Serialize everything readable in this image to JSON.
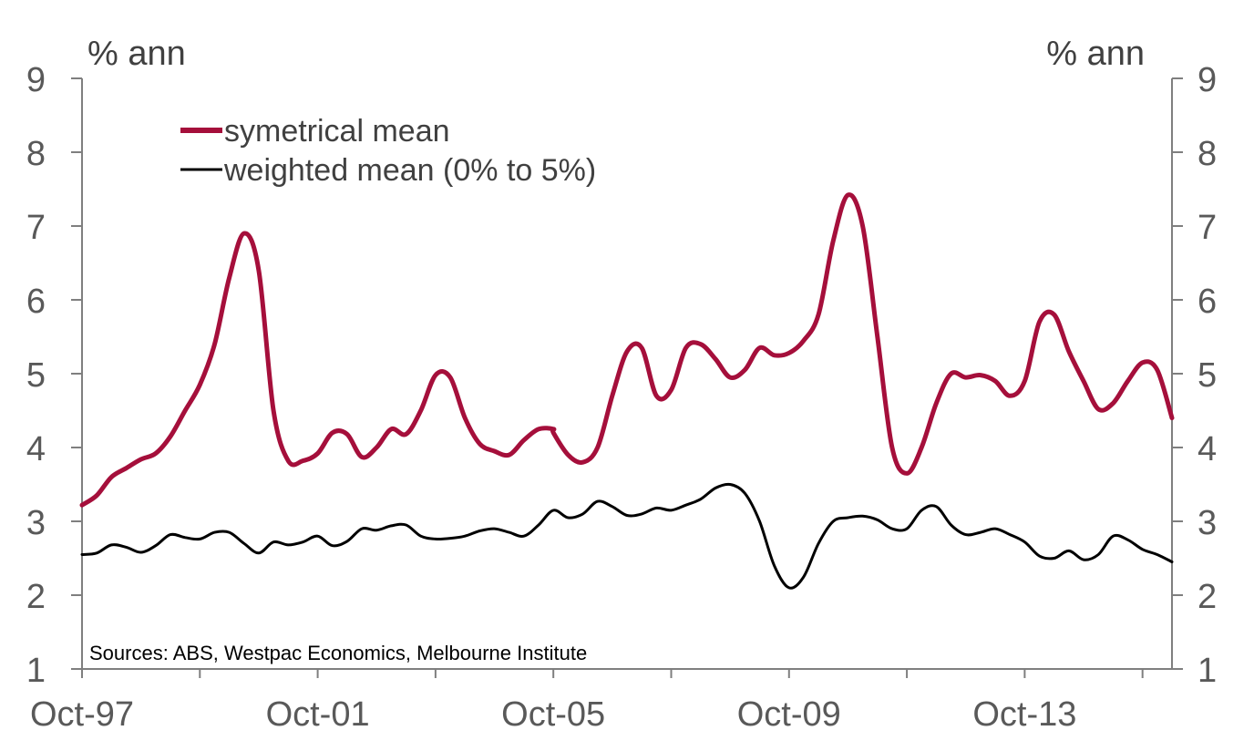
{
  "chart_data": {
    "type": "line",
    "y_unit_left": "% ann",
    "y_unit_right": "% ann",
    "source": "Sources: ABS, Westpac Economics, Melbourne Institute",
    "ylim": [
      1,
      9
    ],
    "y_ticks": [
      1,
      2,
      3,
      4,
      5,
      6,
      7,
      8,
      9
    ],
    "x_tick_labels": [
      "Oct-97",
      "Oct-01",
      "Oct-05",
      "Oct-09",
      "Oct-13"
    ],
    "x_label_years": [
      1997.75,
      2001.75,
      2005.75,
      2009.75,
      2013.75
    ],
    "x_minor_tick_years": [
      1997.75,
      1999.75,
      2001.75,
      2003.75,
      2005.75,
      2007.75,
      2009.75,
      2011.75,
      2013.75,
      2015.75
    ],
    "xlim": [
      1997.75,
      2016.25
    ],
    "grid": false,
    "legend_position": "top-left",
    "series": [
      {
        "name": "symetrical mean",
        "color": "#a50f3b",
        "points": [
          [
            1997.75,
            3.22
          ],
          [
            1998.0,
            3.35
          ],
          [
            1998.25,
            3.6
          ],
          [
            1998.5,
            3.72
          ],
          [
            1998.75,
            3.84
          ],
          [
            1999.0,
            3.92
          ],
          [
            1999.25,
            4.15
          ],
          [
            1999.5,
            4.5
          ],
          [
            1999.75,
            4.85
          ],
          [
            2000.0,
            5.4
          ],
          [
            2000.25,
            6.3
          ],
          [
            2000.5,
            6.9
          ],
          [
            2000.75,
            6.4
          ],
          [
            2001.0,
            4.5
          ],
          [
            2001.25,
            3.82
          ],
          [
            2001.5,
            3.82
          ],
          [
            2001.75,
            3.92
          ],
          [
            2002.0,
            4.2
          ],
          [
            2002.25,
            4.18
          ],
          [
            2002.5,
            3.87
          ],
          [
            2002.75,
            4.0
          ],
          [
            2003.0,
            4.25
          ],
          [
            2003.25,
            4.18
          ],
          [
            2003.5,
            4.5
          ],
          [
            2003.75,
            4.98
          ],
          [
            2004.0,
            4.95
          ],
          [
            2004.25,
            4.4
          ],
          [
            2004.5,
            4.05
          ],
          [
            2004.75,
            3.95
          ],
          [
            2005.0,
            3.9
          ],
          [
            2005.25,
            4.1
          ],
          [
            2005.5,
            4.25
          ],
          [
            2005.75,
            4.25
          ],
          [
            2005.75,
            4.2
          ],
          [
            2006.0,
            3.9
          ],
          [
            2006.25,
            3.8
          ],
          [
            2006.5,
            4.0
          ],
          [
            2006.75,
            4.7
          ],
          [
            2007.0,
            5.3
          ],
          [
            2007.25,
            5.35
          ],
          [
            2007.5,
            4.7
          ],
          [
            2007.75,
            4.78
          ],
          [
            2008.0,
            5.35
          ],
          [
            2008.25,
            5.4
          ],
          [
            2008.5,
            5.2
          ],
          [
            2008.75,
            4.95
          ],
          [
            2009.0,
            5.05
          ],
          [
            2009.25,
            5.35
          ],
          [
            2009.5,
            5.25
          ],
          [
            2009.75,
            5.28
          ],
          [
            2010.0,
            5.45
          ],
          [
            2010.25,
            5.8
          ],
          [
            2010.5,
            6.8
          ],
          [
            2010.75,
            7.42
          ],
          [
            2011.0,
            7.0
          ],
          [
            2011.25,
            5.5
          ],
          [
            2011.5,
            4.0
          ],
          [
            2011.75,
            3.65
          ],
          [
            2012.0,
            4.0
          ],
          [
            2012.25,
            4.6
          ],
          [
            2012.5,
            5.0
          ],
          [
            2012.75,
            4.95
          ],
          [
            2013.0,
            4.98
          ],
          [
            2013.25,
            4.9
          ],
          [
            2013.5,
            4.7
          ],
          [
            2013.75,
            4.9
          ],
          [
            2014.0,
            5.7
          ],
          [
            2014.25,
            5.8
          ],
          [
            2014.5,
            5.3
          ],
          [
            2014.75,
            4.9
          ],
          [
            2015.0,
            4.52
          ],
          [
            2015.25,
            4.6
          ],
          [
            2015.5,
            4.9
          ],
          [
            2015.75,
            5.15
          ],
          [
            2016.0,
            5.05
          ],
          [
            2016.25,
            4.4
          ]
        ]
      },
      {
        "name": "weighted mean (0% to 5%)",
        "color": "#000000",
        "points": [
          [
            1997.75,
            2.55
          ],
          [
            1998.0,
            2.57
          ],
          [
            1998.25,
            2.68
          ],
          [
            1998.5,
            2.65
          ],
          [
            1998.75,
            2.58
          ],
          [
            1999.0,
            2.67
          ],
          [
            1999.25,
            2.82
          ],
          [
            1999.5,
            2.78
          ],
          [
            1999.75,
            2.76
          ],
          [
            2000.0,
            2.85
          ],
          [
            2000.25,
            2.85
          ],
          [
            2000.5,
            2.7
          ],
          [
            2000.75,
            2.57
          ],
          [
            2001.0,
            2.72
          ],
          [
            2001.25,
            2.68
          ],
          [
            2001.5,
            2.72
          ],
          [
            2001.75,
            2.8
          ],
          [
            2002.0,
            2.67
          ],
          [
            2002.25,
            2.73
          ],
          [
            2002.5,
            2.9
          ],
          [
            2002.75,
            2.88
          ],
          [
            2003.0,
            2.94
          ],
          [
            2003.25,
            2.95
          ],
          [
            2003.5,
            2.8
          ],
          [
            2003.75,
            2.76
          ],
          [
            2004.0,
            2.77
          ],
          [
            2004.25,
            2.8
          ],
          [
            2004.5,
            2.87
          ],
          [
            2004.75,
            2.9
          ],
          [
            2005.0,
            2.85
          ],
          [
            2005.25,
            2.8
          ],
          [
            2005.5,
            2.95
          ],
          [
            2005.75,
            3.15
          ],
          [
            2006.0,
            3.05
          ],
          [
            2006.25,
            3.1
          ],
          [
            2006.5,
            3.27
          ],
          [
            2006.75,
            3.2
          ],
          [
            2007.0,
            3.08
          ],
          [
            2007.25,
            3.1
          ],
          [
            2007.5,
            3.18
          ],
          [
            2007.75,
            3.15
          ],
          [
            2008.0,
            3.22
          ],
          [
            2008.25,
            3.3
          ],
          [
            2008.5,
            3.45
          ],
          [
            2008.75,
            3.5
          ],
          [
            2009.0,
            3.38
          ],
          [
            2009.25,
            3.0
          ],
          [
            2009.5,
            2.4
          ],
          [
            2009.75,
            2.1
          ],
          [
            2010.0,
            2.25
          ],
          [
            2010.25,
            2.7
          ],
          [
            2010.5,
            3.0
          ],
          [
            2010.75,
            3.05
          ],
          [
            2011.0,
            3.07
          ],
          [
            2011.25,
            3.02
          ],
          [
            2011.5,
            2.9
          ],
          [
            2011.75,
            2.9
          ],
          [
            2012.0,
            3.15
          ],
          [
            2012.25,
            3.2
          ],
          [
            2012.5,
            2.95
          ],
          [
            2012.75,
            2.82
          ],
          [
            2013.0,
            2.85
          ],
          [
            2013.25,
            2.9
          ],
          [
            2013.5,
            2.82
          ],
          [
            2013.75,
            2.72
          ],
          [
            2014.0,
            2.53
          ],
          [
            2014.25,
            2.5
          ],
          [
            2014.5,
            2.6
          ],
          [
            2014.75,
            2.48
          ],
          [
            2015.0,
            2.55
          ],
          [
            2015.25,
            2.8
          ],
          [
            2015.5,
            2.75
          ],
          [
            2015.75,
            2.62
          ],
          [
            2016.0,
            2.55
          ],
          [
            2016.25,
            2.45
          ]
        ]
      }
    ]
  }
}
